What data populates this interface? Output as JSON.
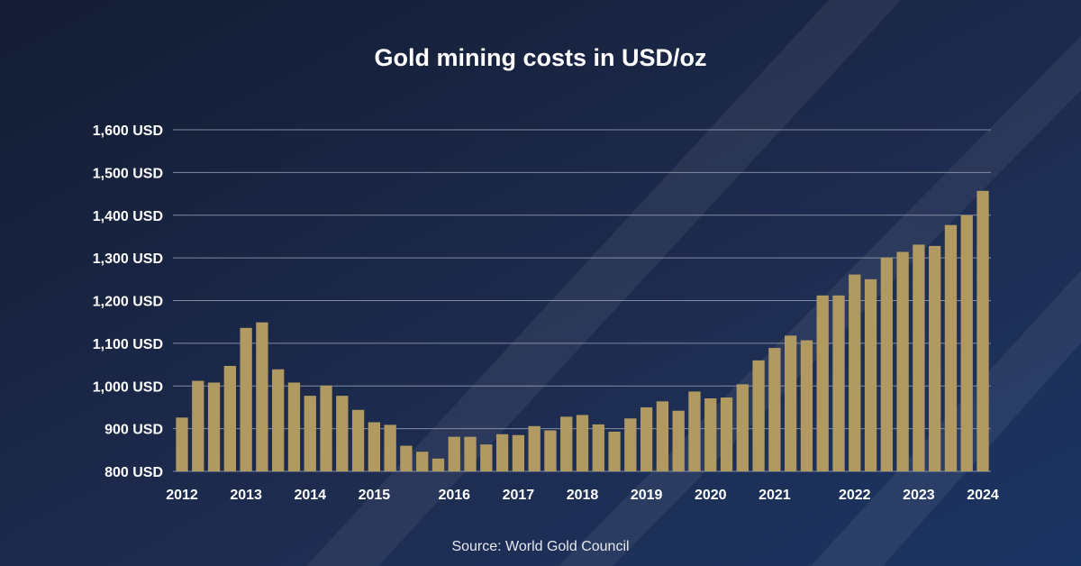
{
  "chart_data": {
    "type": "bar",
    "title": "Gold mining costs in USD/oz",
    "source": "Source: World Gold Council",
    "ylim": [
      800,
      1600
    ],
    "yticks": [
      800,
      900,
      1000,
      1100,
      1200,
      1300,
      1400,
      1500,
      1600
    ],
    "ytick_labels": [
      "800 USD",
      "900 USD",
      "1,000 USD",
      "1,100 USD",
      "1,200 USD",
      "1,300 USD",
      "1,400 USD",
      "1,500 USD",
      "1,600 USD"
    ],
    "grid": true,
    "xtick_labels": [
      {
        "bar": 0,
        "label": "2012"
      },
      {
        "bar": 4,
        "label": "2013"
      },
      {
        "bar": 8,
        "label": "2014"
      },
      {
        "bar": 12,
        "label": "2015"
      },
      {
        "bar": 17,
        "label": "2016"
      },
      {
        "bar": 21,
        "label": "2017"
      },
      {
        "bar": 25,
        "label": "2018"
      },
      {
        "bar": 29,
        "label": "2019"
      },
      {
        "bar": 33,
        "label": "2020"
      },
      {
        "bar": 37,
        "label": "2021"
      },
      {
        "bar": 42,
        "label": "2022"
      },
      {
        "bar": 46,
        "label": "2023"
      },
      {
        "bar": 50,
        "label": "2024"
      }
    ],
    "values": [
      926,
      1012,
      1008,
      1047,
      1136,
      1149,
      1039,
      1008,
      977,
      1001,
      977,
      944,
      915,
      909,
      860,
      846,
      830,
      881,
      881,
      863,
      887,
      885,
      906,
      896,
      928,
      932,
      910,
      893,
      924,
      950,
      964,
      942,
      987,
      971,
      973,
      1004,
      1060,
      1089,
      1118,
      1107,
      1212,
      1212,
      1261,
      1250,
      1301,
      1314,
      1331,
      1328,
      1377,
      1400,
      1457
    ],
    "colors": {
      "bar": "#b09a62",
      "background": "#16213d",
      "grid": "#9aa3b8",
      "text": "#ffffff"
    }
  }
}
